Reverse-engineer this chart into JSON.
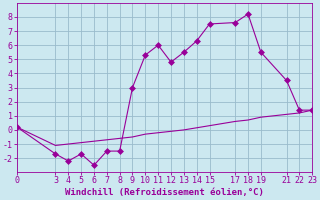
{
  "xlabel": "Windchill (Refroidissement éolien,°C)",
  "ylabel": "",
  "bg_color": "#cce8f0",
  "line_color": "#990099",
  "grid_color": "#99bbcc",
  "x_main": [
    0,
    3,
    4,
    5,
    6,
    7,
    8,
    9,
    10,
    11,
    12,
    13,
    14,
    15,
    17,
    18,
    19,
    21,
    22,
    23
  ],
  "y_main": [
    0.2,
    -1.7,
    -2.2,
    -1.7,
    -2.5,
    -1.5,
    -1.5,
    3.0,
    5.3,
    6.0,
    4.8,
    5.5,
    6.3,
    7.5,
    7.6,
    8.2,
    5.5,
    3.5,
    1.4,
    1.4
  ],
  "x_ref": [
    0,
    3,
    4,
    5,
    6,
    7,
    8,
    9,
    10,
    11,
    12,
    13,
    14,
    15,
    17,
    18,
    19,
    21,
    22,
    23
  ],
  "y_ref": [
    0.2,
    -1.1,
    -1.0,
    -0.9,
    -0.8,
    -0.7,
    -0.6,
    -0.5,
    -0.3,
    -0.2,
    -0.1,
    0.0,
    0.15,
    0.3,
    0.6,
    0.7,
    0.9,
    1.1,
    1.2,
    1.4
  ],
  "xlim": [
    0,
    23
  ],
  "ylim": [
    -3,
    9
  ],
  "xticks": [
    0,
    3,
    4,
    5,
    6,
    7,
    8,
    9,
    10,
    11,
    12,
    13,
    14,
    15,
    17,
    18,
    19,
    21,
    22,
    23
  ],
  "yticks": [
    -2,
    -1,
    0,
    1,
    2,
    3,
    4,
    5,
    6,
    7,
    8
  ],
  "xlabel_fontsize": 6.5,
  "tick_fontsize": 6,
  "marker_size": 3
}
